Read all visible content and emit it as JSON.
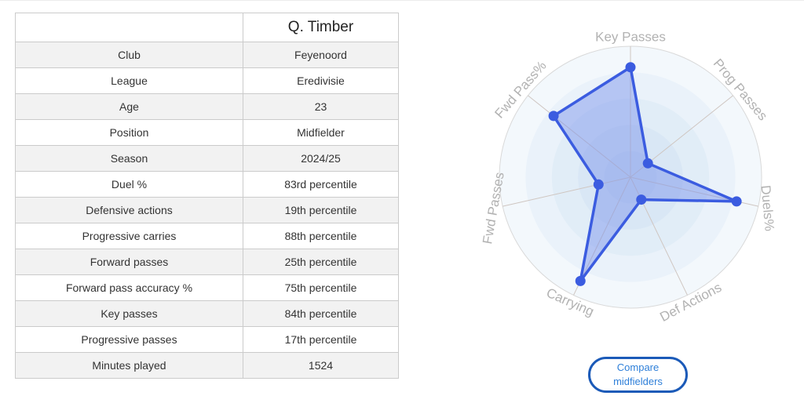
{
  "player_table": {
    "header": {
      "corner": "",
      "player_name": "Q. Timber"
    },
    "rows": [
      {
        "label": "Club",
        "value": "Feyenoord",
        "style": "link"
      },
      {
        "label": "League",
        "value": "Eredivisie",
        "style": "plain"
      },
      {
        "label": "Age",
        "value": "23",
        "style": "plain"
      },
      {
        "label": "Position",
        "value": "Midfielder",
        "style": "link"
      },
      {
        "label": "Season",
        "value": "2024/25",
        "style": "plain"
      },
      {
        "label": "Duel %",
        "value": "83rd percentile",
        "style": "good"
      },
      {
        "label": "Defensive actions",
        "value": "19th percentile",
        "style": "bad"
      },
      {
        "label": "Progressive carries",
        "value": "88th percentile",
        "style": "good"
      },
      {
        "label": "Forward passes",
        "value": "25th percentile",
        "style": "bad"
      },
      {
        "label": "Forward pass accuracy %",
        "value": "75th percentile",
        "style": "good"
      },
      {
        "label": "Key passes",
        "value": "84th percentile",
        "style": "good"
      },
      {
        "label": "Progressive passes",
        "value": "17th percentile",
        "style": "bad"
      },
      {
        "label": "Minutes played",
        "value": "1524",
        "style": "plain"
      }
    ]
  },
  "chart_data": {
    "type": "radar",
    "categories": [
      "Key Passes",
      "Prog Passes",
      "Duels%",
      "Def Actions",
      "Carrying",
      "Fwd Passes",
      "Fwd Pass%"
    ],
    "series": [
      {
        "name": "Q. Timber",
        "values": [
          84,
          17,
          83,
          19,
          88,
          25,
          75
        ]
      }
    ],
    "scale": {
      "min": 0,
      "max": 100,
      "rings": 5
    },
    "grid": "circular",
    "legend": "none",
    "label_rotations_deg": [
      0,
      50,
      85,
      -28,
      24,
      -80,
      -49
    ],
    "colors": {
      "line": "#3b5ce0",
      "fill": "rgba(118,143,236,0.45)",
      "point": "#3b5ce0",
      "axis_label": "#b2b2b2",
      "spoke": "#cfc6c1",
      "outer_circle_stroke": "#d9d9d9",
      "rings_outer_to_inner": [
        "#f3f8fc",
        "#eaf2fa",
        "#e1edf7",
        "#d9e7f5",
        "#d2e2f3"
      ]
    }
  },
  "compare_button": {
    "line1": "Compare",
    "line2": "midfielders"
  },
  "colors": {
    "link_blue": "#2b2bdf",
    "percentile_good": "#2f8f2f",
    "percentile_bad": "#ee3a33",
    "button_border": "#1b5ab8",
    "button_text": "#2e7fd9",
    "table_border": "#cbcbcb",
    "row_alt_bg": "#f2f2f2"
  }
}
